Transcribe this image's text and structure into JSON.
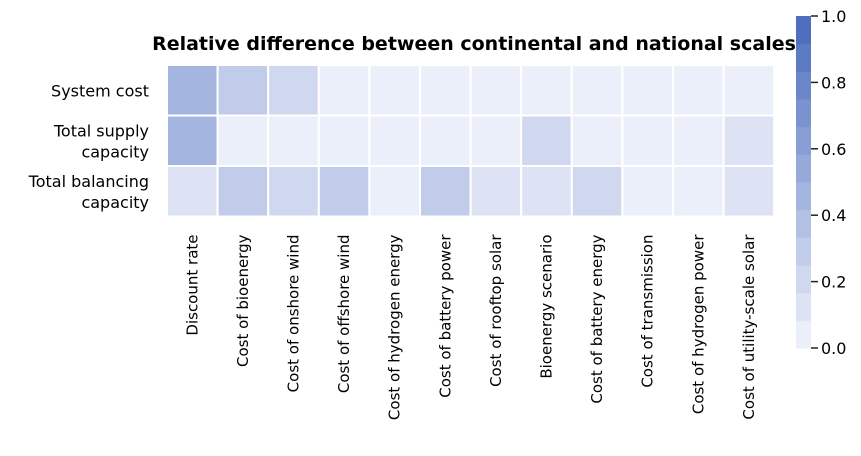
{
  "chart_data": {
    "type": "heatmap",
    "title": "Relative difference between continental and national scales",
    "rows": [
      "System cost",
      "Total supply capacity",
      "Total balancing capacity"
    ],
    "row_label_lines": [
      [
        "System cost"
      ],
      [
        "Total supply",
        "capacity"
      ],
      [
        "Total balancing",
        "capacity"
      ]
    ],
    "columns": [
      "Discount rate",
      "Cost of bioenergy",
      "Cost of onshore wind",
      "Cost of offshore wind",
      "Cost of hydrogen energy",
      "Cost of battery power",
      "Cost of rooftop solar",
      "Bioenergy scenario",
      "Cost of battery energy",
      "Cost of transmission",
      "Cost of hydrogen power",
      "Cost of utility-scale solar"
    ],
    "values": [
      [
        0.42,
        0.32,
        0.17,
        0.05,
        0.05,
        0.05,
        0.05,
        0.05,
        0.05,
        0.05,
        0.05,
        0.05
      ],
      [
        0.45,
        0.05,
        0.05,
        0.05,
        0.05,
        0.05,
        0.05,
        0.17,
        0.05,
        0.05,
        0.05,
        0.15
      ],
      [
        0.15,
        0.25,
        0.18,
        0.28,
        0.05,
        0.25,
        0.13,
        0.15,
        0.17,
        0.05,
        0.05,
        0.15
      ]
    ],
    "colorbar": {
      "min": 0.0,
      "max": 1.0,
      "ticks": [
        "0.0",
        "0.2",
        "0.4",
        "0.6",
        "0.8",
        "1.0"
      ],
      "tick_values": [
        0.0,
        0.2,
        0.4,
        0.6,
        0.8,
        1.0
      ],
      "steps": 12,
      "low_color": "#ebeffa",
      "high_color": "#4f6fbe"
    },
    "grid_line_color": "#ffffff"
  }
}
